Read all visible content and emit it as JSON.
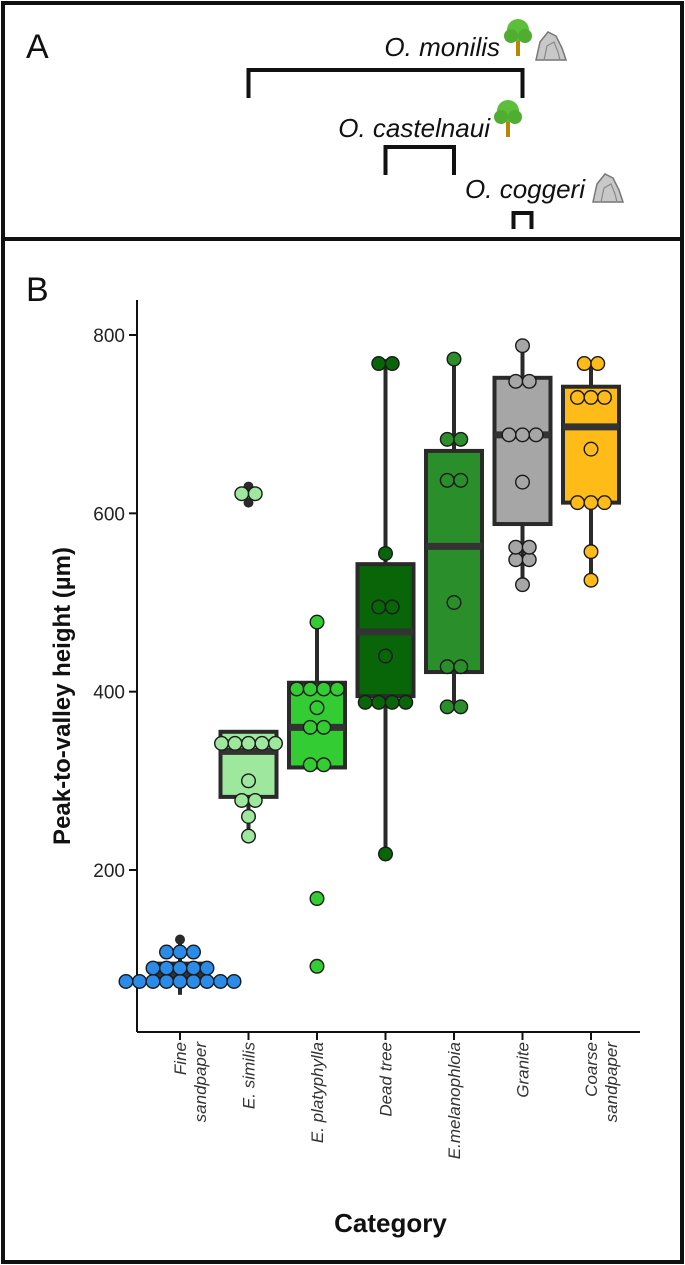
{
  "panel_a": {
    "label": "A",
    "species": [
      {
        "name": "O. monilis",
        "icons": [
          "tree-icon",
          "rock-icon"
        ],
        "range": [
          "E. similis",
          "Granite"
        ]
      },
      {
        "name": "O. castelnaui",
        "icons": [
          "tree-icon"
        ],
        "range": [
          "Dead tree",
          "E.melanophloia"
        ]
      },
      {
        "name": "O. coggeri",
        "icons": [
          "rock-icon"
        ],
        "range": [
          "Granite",
          "Granite"
        ]
      }
    ]
  },
  "chart_data": {
    "type": "boxplot",
    "panel_label": "B",
    "title": "",
    "xlabel": "Category",
    "ylabel": "Peak-to-valley height (µm)",
    "ylim": [
      0,
      840
    ],
    "yticks": [
      200,
      400,
      600,
      800
    ],
    "grid": false,
    "legend": "none",
    "categories": [
      {
        "name": "Fine sandpaper",
        "lines": [
          "Fine",
          "sandpaper"
        ],
        "color": "#2b8be8",
        "box": {
          "q1": 78,
          "median": 83,
          "q3": 95,
          "whisker_low": 60,
          "whisker_high": 122
        },
        "outliers": [
          122
        ],
        "points": [
          75,
          75,
          75,
          75,
          75,
          75,
          75,
          75,
          75,
          90,
          90,
          90,
          90,
          90,
          108,
          108,
          108
        ]
      },
      {
        "name": "E. similis",
        "lines": [
          "E. similis"
        ],
        "color": "#9ee89e",
        "box": {
          "q1": 282,
          "median": 333,
          "q3": 355,
          "whisker_low": 245,
          "whisker_high": 355
        },
        "outliers": [
          612,
          630
        ],
        "points": [
          238,
          260,
          278,
          278,
          300,
          342,
          342,
          342,
          342,
          342,
          622,
          622
        ]
      },
      {
        "name": "E. platyphylla",
        "lines": [
          "E. platyphylla"
        ],
        "color": "#33cc33",
        "box": {
          "q1": 315,
          "median": 360,
          "q3": 410,
          "whisker_low": 315,
          "whisker_high": 478
        },
        "outliers": [],
        "points": [
          92,
          168,
          318,
          318,
          360,
          360,
          382,
          403,
          403,
          403,
          403,
          478
        ]
      },
      {
        "name": "Dead tree",
        "lines": [
          "Dead tree"
        ],
        "color": "#086608",
        "box": {
          "q1": 395,
          "median": 467,
          "q3": 543,
          "whisker_low": 218,
          "whisker_high": 773
        },
        "outliers": [],
        "points": [
          218,
          388,
          388,
          388,
          388,
          440,
          495,
          495,
          555,
          768,
          768
        ]
      },
      {
        "name": "E.melanophloia",
        "lines": [
          "E.melanophloia"
        ],
        "color": "#2a8f2a",
        "box": {
          "q1": 422,
          "median": 563,
          "q3": 670,
          "whisker_low": 385,
          "whisker_high": 773
        },
        "outliers": [],
        "points": [
          383,
          383,
          428,
          428,
          500,
          637,
          637,
          683,
          683,
          773
        ]
      },
      {
        "name": "Granite",
        "lines": [
          "Granite"
        ],
        "color": "#a6a6a6",
        "box": {
          "q1": 588,
          "median": 688,
          "q3": 752,
          "whisker_low": 520,
          "whisker_high": 788
        },
        "outliers": [],
        "points": [
          520,
          548,
          548,
          562,
          562,
          635,
          688,
          688,
          688,
          748,
          748,
          788
        ]
      },
      {
        "name": "Coarse sandpaper",
        "lines": [
          "Coarse",
          "sandpaper"
        ],
        "color": "#ffbb18",
        "box": {
          "q1": 612,
          "median": 697,
          "q3": 742,
          "whisker_low": 525,
          "whisker_high": 768
        },
        "outliers": [],
        "points": [
          525,
          557,
          612,
          612,
          612,
          672,
          730,
          730,
          730,
          768,
          768
        ]
      }
    ]
  },
  "colors": {
    "border": "#111111",
    "axis": "#111111",
    "box_stroke": "#2a2a2a",
    "point_stroke": "#1a1a1a"
  }
}
